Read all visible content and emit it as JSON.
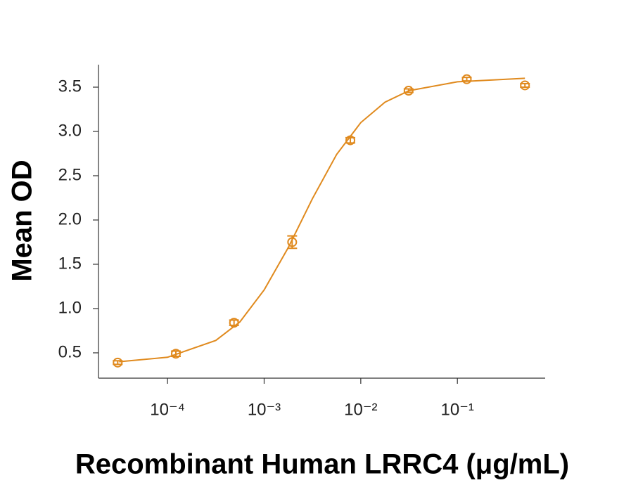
{
  "chart_data": {
    "type": "scatter",
    "xlabel": "Recombinant Human LRRC4 (μg/mL)",
    "ylabel": "Mean OD",
    "xscale": "log",
    "color": "#e08a1e",
    "xlim": [
      1.93e-05,
      0.81
    ],
    "ylim": [
      0.214,
      3.754
    ],
    "xticks": [
      {
        "value": 0.0001,
        "label": "10⁻⁴"
      },
      {
        "value": 0.001,
        "label": "10⁻³"
      },
      {
        "value": 0.01,
        "label": "10⁻²"
      },
      {
        "value": 0.1,
        "label": "10⁻¹"
      }
    ],
    "yticks": [
      0.5,
      {
        "value": 1,
        "label": "1.0"
      },
      1.5,
      {
        "value": 2,
        "label": "2.0"
      },
      2.5,
      {
        "value": 3,
        "label": "3.0"
      },
      3.5
    ],
    "points": {
      "x": [
        3.05e-05,
        0.000122,
        0.000488,
        0.00195,
        0.0078,
        0.03125,
        0.125,
        0.5
      ],
      "values": [
        0.39,
        0.49,
        0.84,
        1.75,
        2.9,
        3.46,
        3.59,
        3.52
      ],
      "errors": [
        0.02,
        0.03,
        0.03,
        0.07,
        0.03,
        0.02,
        0.02,
        0.02
      ]
    },
    "fit": {
      "x": [
        3.16e-05,
        0.0001,
        0.000316,
        0.000562,
        0.001,
        0.00178,
        0.00316,
        0.00562,
        0.01,
        0.0178,
        0.0316,
        0.1,
        0.5
      ],
      "values": [
        0.4,
        0.45,
        0.64,
        0.85,
        1.21,
        1.69,
        2.24,
        2.74,
        3.1,
        3.33,
        3.46,
        3.56,
        3.6
      ]
    }
  }
}
